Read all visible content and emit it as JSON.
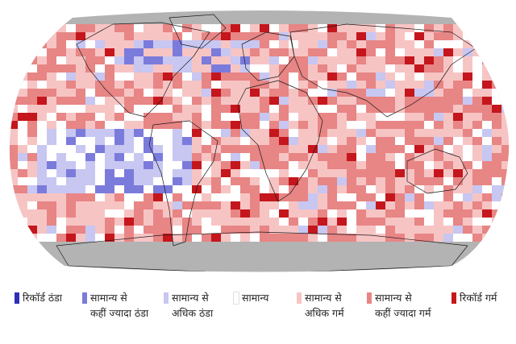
{
  "map": {
    "projection": "robinson",
    "background_color": "#b3b3b3",
    "land_outline_color": "#1a1a1a"
  },
  "legend": {
    "items": [
      {
        "label": "रिकॉर्ड ठंडा",
        "color": "#2e2eb8"
      },
      {
        "label": "सामान्य से\nकहीं ज्यादा ठंडा",
        "color": "#7b7bdc"
      },
      {
        "label": "सामान्य से\nअधिक ठंडा",
        "color": "#c7c7f2"
      },
      {
        "label": "सामान्य",
        "color": "#ffffff"
      },
      {
        "label": "सामान्य से\nअधिक गर्म",
        "color": "#f7c4c4"
      },
      {
        "label": "सामान्य से\nकहीं ज्यादा गर्म",
        "color": "#e88585"
      },
      {
        "label": "रिकॉर्ड गर्म",
        "color": "#c4161c"
      }
    ]
  }
}
